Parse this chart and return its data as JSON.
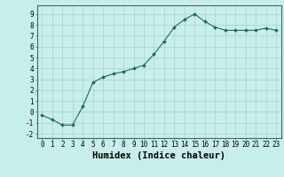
{
  "x": [
    0,
    1,
    2,
    3,
    4,
    5,
    6,
    7,
    8,
    9,
    10,
    11,
    12,
    13,
    14,
    15,
    16,
    17,
    18,
    19,
    20,
    21,
    22,
    23
  ],
  "y": [
    -0.3,
    -0.7,
    -1.2,
    -1.2,
    0.5,
    2.7,
    3.2,
    3.5,
    3.7,
    4.0,
    4.3,
    5.3,
    6.5,
    7.8,
    8.5,
    9.0,
    8.3,
    7.8,
    7.5,
    7.5,
    7.5,
    7.5,
    7.7,
    7.5
  ],
  "line_color": "#1a6b5a",
  "marker": "D",
  "marker_size": 2.0,
  "bg_color": "#c8eeec",
  "grid_color": "#a8d8d4",
  "xlabel": "Humidex (Indice chaleur)",
  "xlim": [
    -0.5,
    23.5
  ],
  "ylim": [
    -2.4,
    9.8
  ],
  "yticks": [
    -2,
    -1,
    0,
    1,
    2,
    3,
    4,
    5,
    6,
    7,
    8,
    9
  ],
  "xticks": [
    0,
    1,
    2,
    3,
    4,
    5,
    6,
    7,
    8,
    9,
    10,
    11,
    12,
    13,
    14,
    15,
    16,
    17,
    18,
    19,
    20,
    21,
    22,
    23
  ],
  "tick_label_size": 5.5,
  "xlabel_size": 7.5,
  "axis_color": "#3a6a68",
  "spine_color": "#3a6a68"
}
